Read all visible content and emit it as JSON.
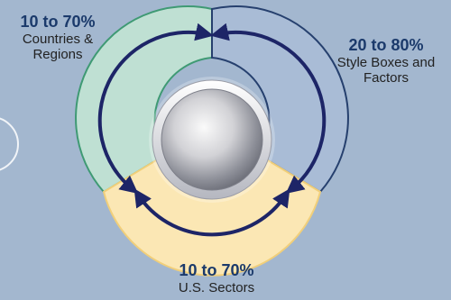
{
  "colors": {
    "background": "#a3b7cf",
    "segment_left_fill": "#bfe0d3",
    "segment_left_stroke": "#3f9a74",
    "segment_right_fill": "#a9bcd6",
    "segment_right_stroke": "#26406e",
    "segment_bottom_fill": "#fbe7b4",
    "segment_bottom_stroke": "#f1cf7a",
    "arrows": "#1d2567",
    "label_percent": "#1b3a6b",
    "label_text": "#222222"
  },
  "segments": {
    "left": {
      "range": "10 to 70%",
      "label": "Countries & Regions"
    },
    "right": {
      "range": "20 to 80%",
      "label": "Style Boxes and Factors"
    },
    "bottom": {
      "range": "10 to 70%",
      "label": "U.S. Sectors"
    }
  },
  "center": {
    "icon": "silver-disc-icon"
  },
  "arrows": {
    "icon": "circular-arrows-icon"
  }
}
